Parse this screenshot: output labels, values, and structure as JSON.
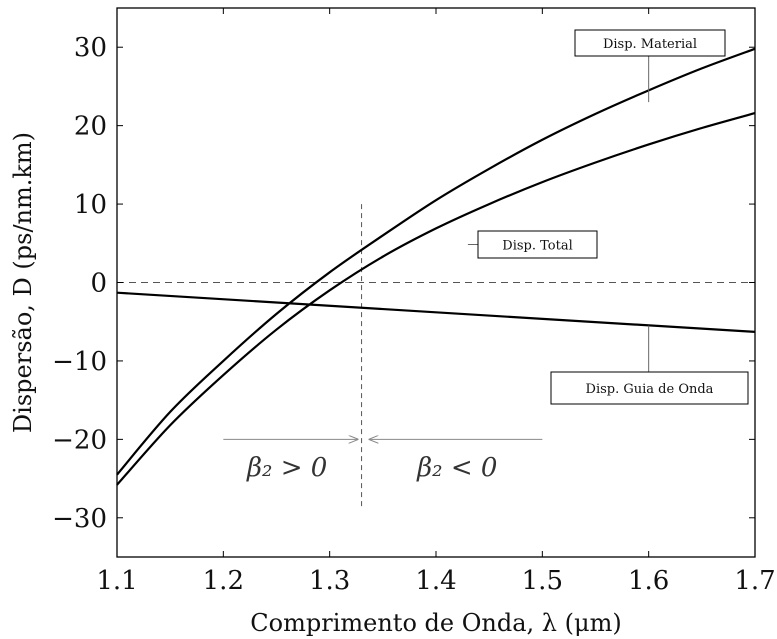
{
  "chart_data": {
    "type": "line",
    "xlabel": "Comprimento de Onda, λ (μm)",
    "ylabel": "Dispersão, D (ps/nm.km)",
    "xlim": [
      1.1,
      1.7
    ],
    "ylim": [
      -35,
      35
    ],
    "xticks": [
      "1.1",
      "1.2",
      "1.3",
      "1.4",
      "1.5",
      "1.6",
      "1.7"
    ],
    "yticks": [
      "−30",
      "−20",
      "−10",
      "0",
      "10",
      "20",
      "30"
    ],
    "grid": false,
    "series": [
      {
        "name": "Disp. Material",
        "x": [
          1.1,
          1.15,
          1.2,
          1.25,
          1.3,
          1.35,
          1.4,
          1.45,
          1.5,
          1.55,
          1.6,
          1.65,
          1.7
        ],
        "y": [
          -24.5,
          -16.5,
          -10,
          -4,
          1.3,
          6,
          10.5,
          14.5,
          18.2,
          21.5,
          24.5,
          27.3,
          29.8
        ]
      },
      {
        "name": "Disp. Total",
        "x": [
          1.1,
          1.15,
          1.2,
          1.25,
          1.3,
          1.35,
          1.4,
          1.45,
          1.5,
          1.55,
          1.6,
          1.65,
          1.7
        ],
        "y": [
          -25.8,
          -18.2,
          -11.8,
          -6,
          -1,
          3.3,
          6.9,
          10,
          12.8,
          15.3,
          17.6,
          19.7,
          21.6
        ]
      },
      {
        "name": "Disp. Guia de Onda",
        "x": [
          1.1,
          1.7
        ],
        "y": [
          -1.3,
          -6.3
        ]
      }
    ],
    "annotations": [
      {
        "text": "Disp. Material",
        "points_to": [
          1.6,
          23
        ]
      },
      {
        "text": "Disp. Total",
        "points_to": [
          1.43,
          5.2
        ]
      },
      {
        "text": "Disp. Guia de Onda",
        "points_to": [
          1.6,
          -5.5
        ]
      },
      {
        "text": "β₂ > 0",
        "x": 1.26,
        "y": -23.5
      },
      {
        "text": "β₂ < 0",
        "x": 1.42,
        "y": -23.5
      }
    ],
    "zero_dispersion_wavelength": 1.33,
    "arrows": [
      {
        "from": 1.2,
        "to": 1.33,
        "y": -20
      },
      {
        "from": 1.5,
        "to": 1.33,
        "y": -20
      }
    ]
  }
}
